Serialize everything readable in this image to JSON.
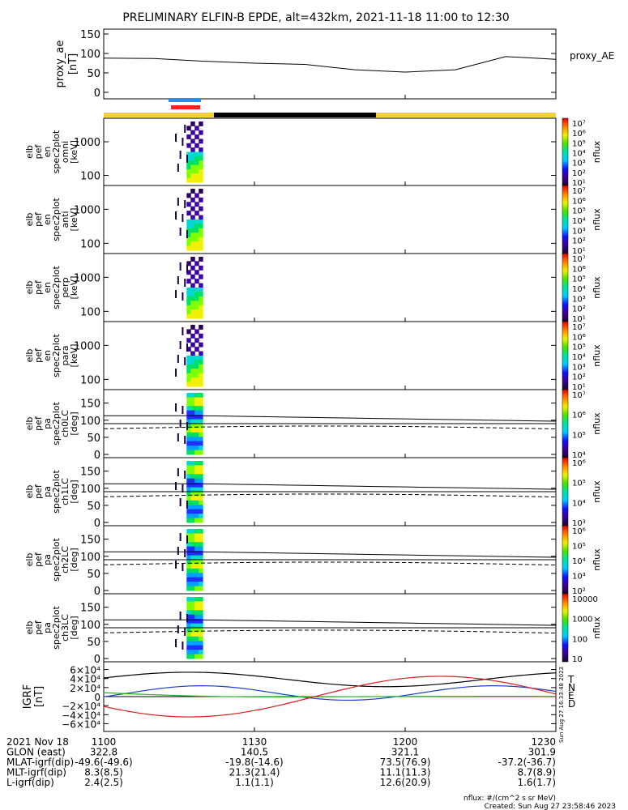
{
  "title": "PRELIMINARY ELFIN-B EPDE, alt=432km, 2021-11-18 11:00 to 12:30",
  "colors": {
    "yellow": "#f5d523",
    "black": "#000000",
    "blue_bar": "#1e90ff",
    "red_bar": "#ff1e1e",
    "T": "#000000",
    "N": "#1f3fd0",
    "E": "#22b522",
    "D": "#d91e1e"
  },
  "time_ticks": [
    "1100",
    "1130",
    "1200",
    "1230"
  ],
  "panels": [
    {
      "ylabel": [
        "proxy_ae",
        "[nT]"
      ],
      "right_label": "proxy_AE",
      "yticks": [
        "150",
        "100",
        "50",
        "0"
      ]
    },
    {
      "ylabel": [
        "elb",
        "pef",
        "en",
        "spec2plot",
        "omni",
        "[keV]"
      ],
      "yticks": [
        "1000",
        "100"
      ],
      "cb_ticks": [
        "10⁷",
        "10⁶",
        "10⁵",
        "10⁴",
        "10³",
        "10²",
        "10¹"
      ],
      "cb_label": "nflux"
    },
    {
      "ylabel": [
        "elb",
        "pef",
        "en",
        "spec2plot",
        "anti",
        "[keV]"
      ],
      "yticks": [
        "1000",
        "100"
      ],
      "cb_ticks": [
        "10⁷",
        "10⁶",
        "10⁵",
        "10⁴",
        "10³",
        "10²",
        "10¹"
      ],
      "cb_label": "nflux"
    },
    {
      "ylabel": [
        "elb",
        "pef",
        "en",
        "spec2plot",
        "perp",
        "[keV]"
      ],
      "yticks": [
        "1000",
        "100"
      ],
      "cb_ticks": [
        "10⁷",
        "10⁶",
        "10⁵",
        "10⁴",
        "10³",
        "10²",
        "10¹"
      ],
      "cb_label": "nflux"
    },
    {
      "ylabel": [
        "elb",
        "pef",
        "en",
        "spec2plot",
        "para",
        "[keV]"
      ],
      "yticks": [
        "1000",
        "100"
      ],
      "cb_ticks": [
        "10⁷",
        "10⁶",
        "10⁵",
        "10⁴",
        "10³",
        "10²",
        "10¹"
      ],
      "cb_label": "nflux"
    },
    {
      "ylabel": [
        "elb",
        "pef",
        "pa",
        "spec2plot",
        "ch0LC",
        "[deg]"
      ],
      "yticks": [
        "150",
        "100",
        "50",
        "0"
      ],
      "cb_ticks": [
        "10⁷",
        "10⁶",
        "10⁵",
        "10⁴"
      ],
      "cb_label": "nflux"
    },
    {
      "ylabel": [
        "elb",
        "pef",
        "pa",
        "spec2plot",
        "ch1LC",
        "[deg]"
      ],
      "yticks": [
        "150",
        "100",
        "50",
        "0"
      ],
      "cb_ticks": [
        "10⁶",
        "10⁵",
        "10⁴",
        "10³"
      ],
      "cb_label": "nflux"
    },
    {
      "ylabel": [
        "elb",
        "pef",
        "pa",
        "spec2plot",
        "ch2LC",
        "[deg]"
      ],
      "yticks": [
        "150",
        "100",
        "50",
        "0"
      ],
      "cb_ticks": [
        "10⁶",
        "10⁵",
        "10⁴",
        "10³",
        "10²"
      ],
      "cb_label": "nflux"
    },
    {
      "ylabel": [
        "elb",
        "pef",
        "pa",
        "spec2plot",
        "ch3LC",
        "[deg]"
      ],
      "yticks": [
        "150",
        "100",
        "50",
        "0"
      ],
      "cb_ticks": [
        "10000",
        "1000",
        "100",
        "10"
      ],
      "cb_label": "nflux"
    },
    {
      "ylabel": [
        "IGRF",
        "[nT]"
      ],
      "yticks": [
        "6×10⁴",
        "4×10⁴",
        "2×10⁴",
        "0",
        "−2×10⁴",
        "−4×10⁴",
        "−6×10⁴"
      ],
      "legend": [
        "T",
        "N",
        "E",
        "D"
      ],
      "stamp": "Sun Aug 27 16:33:48 2023"
    }
  ],
  "footer": {
    "rows": [
      {
        "label": "2021 Nov 18",
        "values": [
          "1100",
          "1130",
          "1200",
          "1230"
        ]
      },
      {
        "label": "GLON (east)",
        "values": [
          "322.8",
          "140.5",
          "321.1",
          "301.9"
        ]
      },
      {
        "label": "MLAT-igrf(dip)",
        "values": [
          "-49.6(-49.6)",
          "-19.8(-14.6)",
          "73.5(76.9)",
          "-37.2(-36.7)"
        ]
      },
      {
        "label": "MLT-igrf(dip)",
        "values": [
          "8.3(8.5)",
          "21.3(21.4)",
          "11.1(11.3)",
          "8.7(8.9)"
        ]
      },
      {
        "label": "L-igrf(dip)",
        "values": [
          "2.4(2.5)",
          "1.1(1.1)",
          "12.6(20.9)",
          "1.6(1.7)"
        ]
      }
    ],
    "note1": "nflux: #/(cm^2 s sr MeV)",
    "note2": "Created: Sun Aug 27 23:58:46 2023"
  },
  "chart_data": [
    {
      "type": "line",
      "name": "proxy_AE",
      "ylim": [
        0,
        150
      ],
      "x": [
        "1100",
        "1110",
        "1120",
        "1130",
        "1140",
        "1150",
        "1200",
        "1210",
        "1220",
        "1230"
      ],
      "values": [
        88,
        87,
        80,
        75,
        72,
        58,
        52,
        58,
        92,
        85
      ]
    },
    {
      "type": "heatmap",
      "name": "omni",
      "ylim": [
        50,
        5000
      ],
      "ylog": true
    },
    {
      "type": "heatmap",
      "name": "anti",
      "ylim": [
        50,
        5000
      ],
      "ylog": true
    },
    {
      "type": "heatmap",
      "name": "perp",
      "ylim": [
        50,
        5000
      ],
      "ylog": true
    },
    {
      "type": "heatmap",
      "name": "para",
      "ylim": [
        50,
        5000
      ],
      "ylog": true
    },
    {
      "type": "heatmap",
      "name": "ch0LC",
      "ylim": [
        0,
        180
      ]
    },
    {
      "type": "heatmap",
      "name": "ch1LC",
      "ylim": [
        0,
        180
      ]
    },
    {
      "type": "heatmap",
      "name": "ch2LC",
      "ylim": [
        0,
        180
      ]
    },
    {
      "type": "heatmap",
      "name": "ch3LC",
      "ylim": [
        0,
        180
      ]
    },
    {
      "type": "line",
      "name": "IGRF",
      "ylim": [
        -70000,
        70000
      ]
    }
  ]
}
